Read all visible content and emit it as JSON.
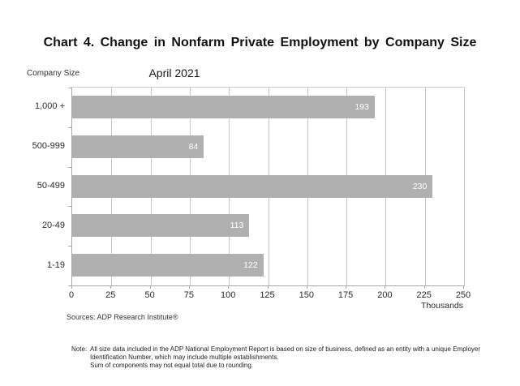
{
  "title": "Chart 4. Change in Nonfarm Private Employment by Company Size",
  "subtitle": "April 2021",
  "y_axis_title": "Company Size",
  "source": "Sources: ADP Research Institute®",
  "note": {
    "label": "Note:",
    "lines": [
      "All size data included in the ADP National Employment Report is based on size of business, defined as an entity with a unique Employer",
      "Identification Number, which may include multiple establishments.",
      "Sum of components may not equal total due to rounding."
    ]
  },
  "chart_data": {
    "type": "bar",
    "orientation": "horizontal",
    "title": "Chart 4. Change in Nonfarm Private Employment by Company Size",
    "subtitle": "April 2021",
    "ylabel": "Company Size",
    "xlabel": "Thousands",
    "categories": [
      "1,000 +",
      "500-999",
      "50-499",
      "20-49",
      "1-19"
    ],
    "values": [
      193,
      84,
      230,
      113,
      122
    ],
    "xlim": [
      0,
      250
    ],
    "xticks": [
      0,
      25,
      50,
      75,
      100,
      125,
      150,
      175,
      200,
      225,
      250
    ],
    "grid": "vertical",
    "legend": "none",
    "bar_color": "#b0b0b0",
    "gridline_color": "#c9c9c9",
    "axis_color": "#a8a8a8",
    "value_label_color": "#ffffff"
  },
  "x_axis_unit_label": "Thousands"
}
